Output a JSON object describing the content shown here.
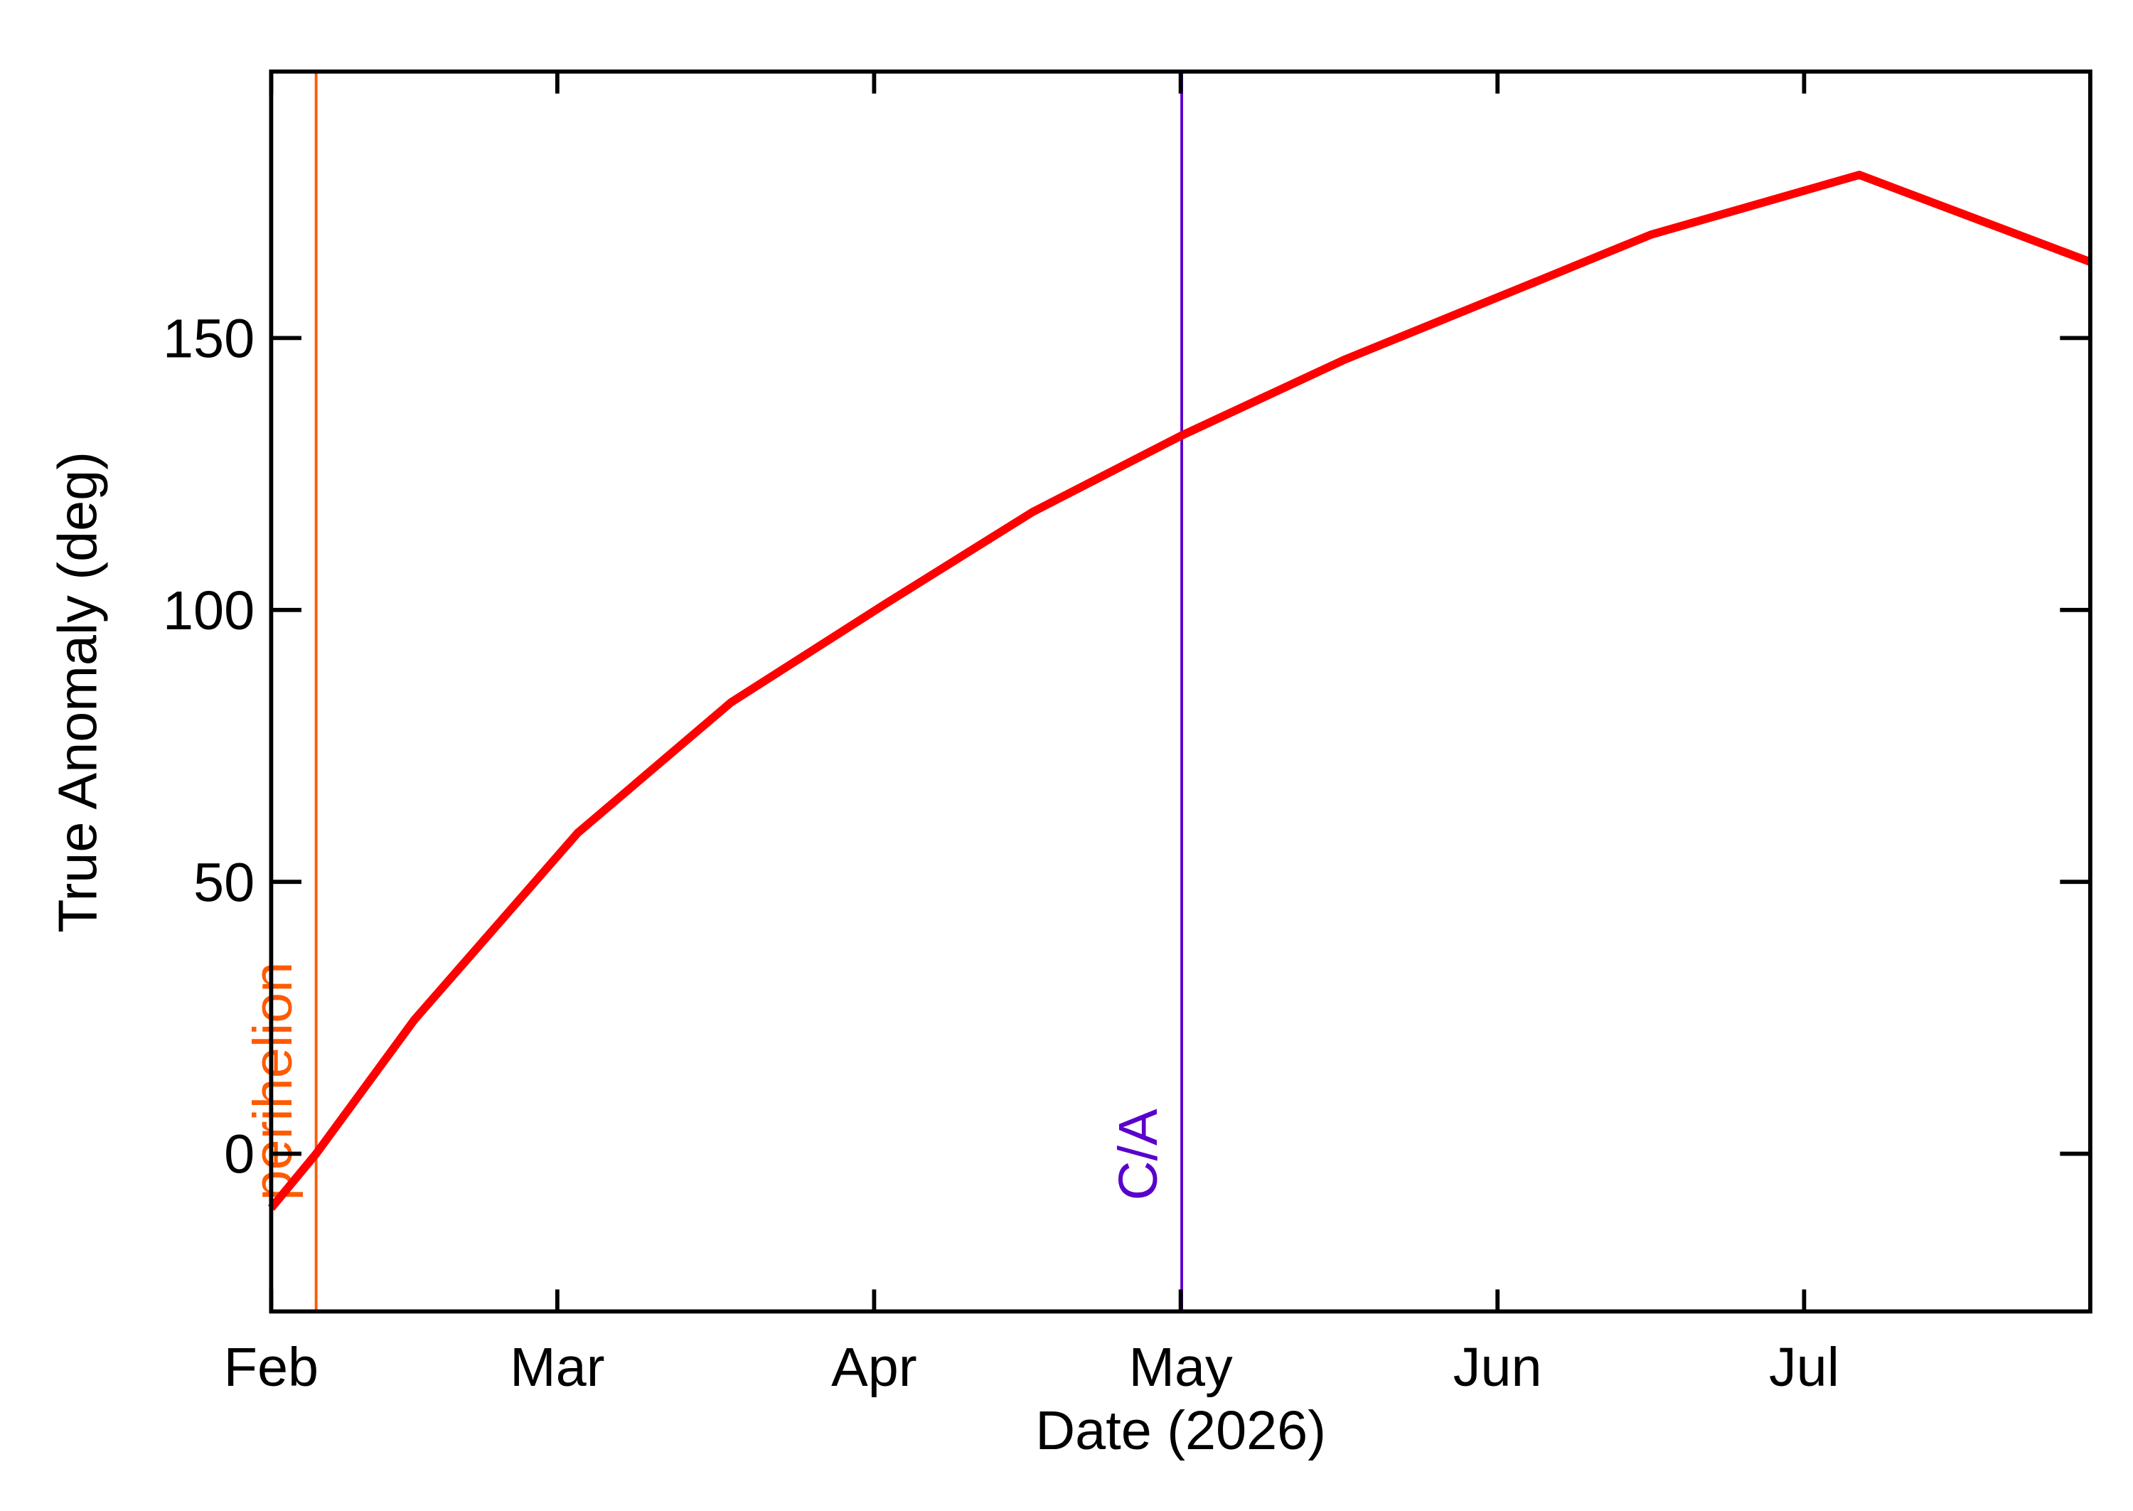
{
  "chart_data": {
    "type": "line",
    "x_label": "Date (2026)",
    "y_label": "True Anomaly (deg)",
    "x": [
      32,
      36.4,
      46,
      62,
      77,
      92,
      106.5,
      121,
      137,
      154,
      167,
      187.4,
      210
    ],
    "series": [
      {
        "color": "#ff0000",
        "values": [
          -10,
          0,
          24.6,
          59,
          83,
          101,
          118,
          132,
          146,
          159,
          169,
          180,
          164
        ]
      }
    ],
    "xlim": [
      32,
      210
    ],
    "xticks": [
      {
        "value": 32,
        "label": "Feb"
      },
      {
        "value": 60,
        "label": "Mar"
      },
      {
        "value": 91,
        "label": "Apr"
      },
      {
        "value": 121,
        "label": "May"
      },
      {
        "value": 152,
        "label": "Jun"
      },
      {
        "value": 182,
        "label": "Jul"
      }
    ],
    "ylim": [
      -29,
      199
    ],
    "yticks": [
      0,
      50,
      100,
      150
    ],
    "markers": [
      {
        "label": "perihelion",
        "x": 36.4,
        "color": "#ff5a00"
      },
      {
        "label": "C/A",
        "x": 121.1,
        "color": "#5a00cc"
      }
    ]
  }
}
